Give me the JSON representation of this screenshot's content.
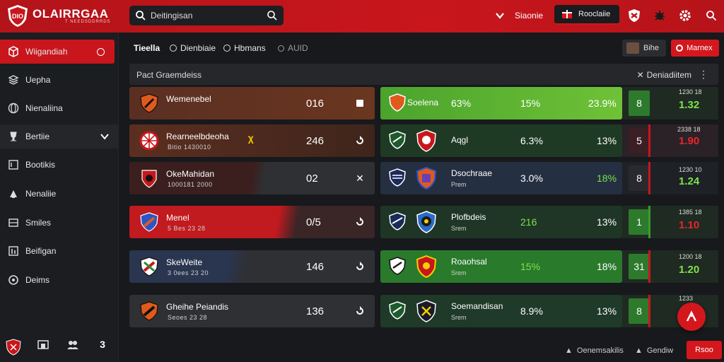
{
  "header": {
    "brand": "OLAIRRGAA",
    "brand_sub": "T NEEDSDDRRDS",
    "search_value": "Deitingisan",
    "link": "Siaonie",
    "primary_button": "Rooclaiie"
  },
  "sidebar": {
    "items": [
      {
        "label": "Wiigandiah",
        "icon": "box-icon"
      },
      {
        "label": "Uepha",
        "icon": "layers-icon"
      },
      {
        "label": "Nienaliina",
        "icon": "globe-icon"
      },
      {
        "label": "Bertiie",
        "icon": "trophy-icon"
      },
      {
        "label": "Bootikis",
        "icon": "list-icon"
      },
      {
        "label": "Nenaliie",
        "icon": "tag-icon"
      },
      {
        "label": "Smiles",
        "icon": "inbox-icon"
      },
      {
        "label": "Beifigan",
        "icon": "chart-icon"
      },
      {
        "label": "Deims",
        "icon": "settings-icon"
      }
    ],
    "footer_badge": "3"
  },
  "tabs": [
    {
      "label": "Tieella"
    },
    {
      "label": "Dienbiaie"
    },
    {
      "label": "Hbmans"
    },
    {
      "label": "AUID"
    }
  ],
  "tab_right": {
    "secondary": "Bihe",
    "primary": "Marnex"
  },
  "panel": {
    "title": "Pact Graemdeiss",
    "right_label": "Deniadiitem"
  },
  "left_rows": [
    {
      "name": "Wemenebel",
      "sub": "",
      "score": "016"
    },
    {
      "name": "Rearneelbdeoha",
      "sub": "Bitio     1430010",
      "score": "246"
    },
    {
      "name": "OkeMahidan",
      "sub": "1000181 2000",
      "score": "02"
    },
    {
      "name": "Menel",
      "sub": "5 Bes 23 28",
      "score": "0/5"
    },
    {
      "name": "SkeWeite",
      "sub": "3 0ees 23 20",
      "score": "146"
    },
    {
      "name": "Gheihe Peiandis",
      "sub": "Seoes 23 28",
      "score": "136"
    }
  ],
  "right_rows": [
    {
      "name": "Soelena",
      "sub": "",
      "p1": "63%",
      "p2": "15%",
      "p3": "23.9%"
    },
    {
      "name": "Aqgl",
      "sub": "",
      "p1": "6.3%",
      "p2": "13%",
      "p3": ""
    },
    {
      "name": "Dsochraae",
      "sub": "Prem",
      "p1": "3.0%",
      "p2": "18%",
      "p3": ""
    },
    {
      "name": "Plofbdeis",
      "sub": "Srem",
      "p1": "216",
      "p2": "13%",
      "p3": ""
    },
    {
      "name": "Roaohsal",
      "sub": "Srem",
      "p1": "15%",
      "p2": "18%",
      "p3": ""
    },
    {
      "name": "Soemandisan",
      "sub": "Srem",
      "p1": "8.9%",
      "p2": "13%",
      "p3": ""
    }
  ],
  "odds": [
    {
      "box": "8",
      "sub": "1230 18",
      "value": "1.32"
    },
    {
      "box": "5",
      "sub": "2338 18",
      "value": "1.90"
    },
    {
      "box": "8",
      "sub": "1230 10",
      "value": "1.24"
    },
    {
      "box": "1",
      "sub": "1385 18",
      "value": "1.10"
    },
    {
      "box": "31",
      "sub": "1200 18",
      "value": "1.20"
    },
    {
      "box": "8",
      "sub": "1233",
      "value": ""
    }
  ],
  "footer": {
    "link1": "Oenemsakilis",
    "link2": "Gendiw",
    "button": "Rsoo"
  },
  "colors": {
    "brand_red": "#c8161c",
    "green": "#3f9b2c",
    "odds_green": "#7de34a",
    "odds_red": "#e8262c"
  }
}
